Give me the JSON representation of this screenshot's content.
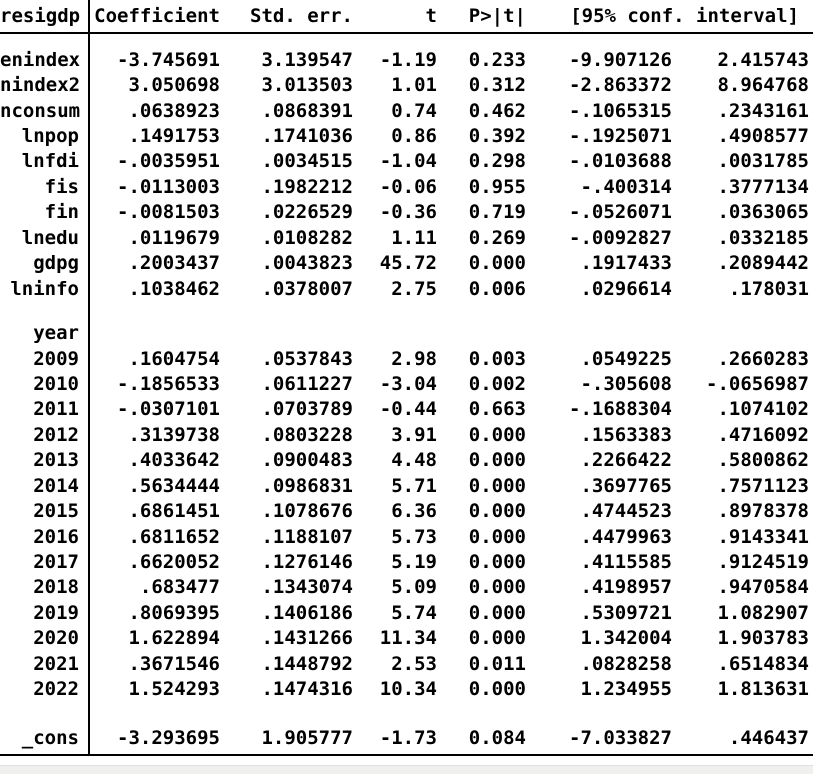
{
  "colors": {
    "text": "#000000",
    "background": "#ffffff",
    "rule": "#000000",
    "bottom_strip": "#f0f0ef"
  },
  "table": {
    "header": {
      "depvar": "resigdp",
      "coef": "Coefficient",
      "se": "Std. err.",
      "t": "t",
      "p": "P>|t|",
      "ci": "[95% conf. interval]"
    },
    "rows": [
      {
        "type": "data",
        "var": "enindex",
        "coef": "-3.745691",
        "se": "3.139547",
        "t": "-1.19",
        "p": "0.233",
        "lo": "-9.907126",
        "hi": "2.415743"
      },
      {
        "type": "data",
        "var": "nindex2",
        "coef": "3.050698",
        "se": "3.013503",
        "t": "1.01",
        "p": "0.312",
        "lo": "-2.863372",
        "hi": "8.964768"
      },
      {
        "type": "data",
        "var": "nconsum",
        "coef": ".0638923",
        "se": ".0868391",
        "t": "0.74",
        "p": "0.462",
        "lo": "-.1065315",
        "hi": ".2343161"
      },
      {
        "type": "data",
        "var": "lnpop",
        "coef": ".1491753",
        "se": ".1741036",
        "t": "0.86",
        "p": "0.392",
        "lo": "-.1925071",
        "hi": ".4908577"
      },
      {
        "type": "data",
        "var": "lnfdi",
        "coef": "-.0035951",
        "se": ".0034515",
        "t": "-1.04",
        "p": "0.298",
        "lo": "-.0103688",
        "hi": ".0031785"
      },
      {
        "type": "data",
        "var": "fis",
        "coef": "-.0113003",
        "se": ".1982212",
        "t": "-0.06",
        "p": "0.955",
        "lo": "-.400314",
        "hi": ".3777134"
      },
      {
        "type": "data",
        "var": "fin",
        "coef": "-.0081503",
        "se": ".0226529",
        "t": "-0.36",
        "p": "0.719",
        "lo": "-.0526071",
        "hi": ".0363065"
      },
      {
        "type": "data",
        "var": "lnedu",
        "coef": ".0119679",
        "se": ".0108282",
        "t": "1.11",
        "p": "0.269",
        "lo": "-.0092827",
        "hi": ".0332185"
      },
      {
        "type": "data",
        "var": "gdpg",
        "coef": ".2003437",
        "se": ".0043823",
        "t": "45.72",
        "p": "0.000",
        "lo": ".1917433",
        "hi": ".2089442"
      },
      {
        "type": "data",
        "var": "lninfo",
        "coef": ".1038462",
        "se": ".0378007",
        "t": "2.75",
        "p": "0.006",
        "lo": ".0296614",
        "hi": ".178031"
      },
      {
        "type": "blank",
        "h": 19
      },
      {
        "type": "group",
        "var": "year"
      },
      {
        "type": "data",
        "var": "2009",
        "coef": ".1604754",
        "se": ".0537843",
        "t": "2.98",
        "p": "0.003",
        "lo": ".0549225",
        "hi": ".2660283"
      },
      {
        "type": "data",
        "var": "2010",
        "coef": "-.1856533",
        "se": ".0611227",
        "t": "-3.04",
        "p": "0.002",
        "lo": "-.305608",
        "hi": "-.0656987"
      },
      {
        "type": "data",
        "var": "2011",
        "coef": "-.0307101",
        "se": ".0703789",
        "t": "-0.44",
        "p": "0.663",
        "lo": "-.1688304",
        "hi": ".1074102"
      },
      {
        "type": "data",
        "var": "2012",
        "coef": ".3139738",
        "se": ".0803228",
        "t": "3.91",
        "p": "0.000",
        "lo": ".1563383",
        "hi": ".4716092"
      },
      {
        "type": "data",
        "var": "2013",
        "coef": ".4033642",
        "se": ".0900483",
        "t": "4.48",
        "p": "0.000",
        "lo": ".2266422",
        "hi": ".5800862"
      },
      {
        "type": "data",
        "var": "2014",
        "coef": ".5634444",
        "se": ".0986831",
        "t": "5.71",
        "p": "0.000",
        "lo": ".3697765",
        "hi": ".7571123"
      },
      {
        "type": "data",
        "var": "2015",
        "coef": ".6861451",
        "se": ".1078676",
        "t": "6.36",
        "p": "0.000",
        "lo": ".4744523",
        "hi": ".8978378"
      },
      {
        "type": "data",
        "var": "2016",
        "coef": ".6811652",
        "se": ".1188107",
        "t": "5.73",
        "p": "0.000",
        "lo": ".4479963",
        "hi": ".9143341"
      },
      {
        "type": "data",
        "var": "2017",
        "coef": ".6620052",
        "se": ".1276146",
        "t": "5.19",
        "p": "0.000",
        "lo": ".4115585",
        "hi": ".9124519"
      },
      {
        "type": "data",
        "var": "2018",
        "coef": ".683477",
        "se": ".1343074",
        "t": "5.09",
        "p": "0.000",
        "lo": ".4198957",
        "hi": ".9470584"
      },
      {
        "type": "data",
        "var": "2019",
        "coef": ".8069395",
        "se": ".1406186",
        "t": "5.74",
        "p": "0.000",
        "lo": ".5309721",
        "hi": "1.082907"
      },
      {
        "type": "data",
        "var": "2020",
        "coef": "1.622894",
        "se": ".1431266",
        "t": "11.34",
        "p": "0.000",
        "lo": "1.342004",
        "hi": "1.903783"
      },
      {
        "type": "data",
        "var": "2021",
        "coef": ".3671546",
        "se": ".1448792",
        "t": "2.53",
        "p": "0.011",
        "lo": ".0828258",
        "hi": ".6514834"
      },
      {
        "type": "data",
        "var": "2022",
        "coef": "1.524293",
        "se": ".1474316",
        "t": "10.34",
        "p": "0.000",
        "lo": "1.234955",
        "hi": "1.813631"
      },
      {
        "type": "blank",
        "h": 23
      },
      {
        "type": "data",
        "var": "_cons",
        "coef": "-3.293695",
        "se": "1.905777",
        "t": "-1.73",
        "p": "0.084",
        "lo": "-7.033827",
        "hi": ".446437"
      }
    ]
  }
}
